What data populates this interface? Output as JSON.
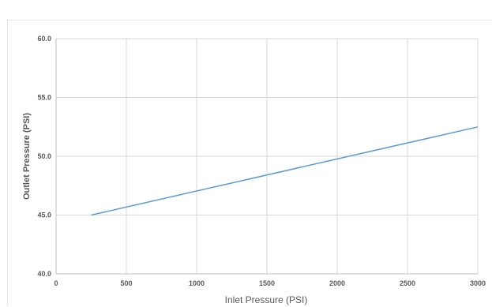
{
  "chart_data": {
    "type": "line",
    "title": "",
    "xlabel": "Inlet Pressure (PSI)",
    "ylabel": "Outlet Pressure (PSI)",
    "xlim": [
      0,
      3000
    ],
    "ylim": [
      40.0,
      60.0
    ],
    "x_ticks": [
      "0",
      "500",
      "1000",
      "1500",
      "2000",
      "2500",
      "3000"
    ],
    "y_ticks": [
      "40.0",
      "45.0",
      "50.0",
      "55.0",
      "60.0"
    ],
    "grid": true,
    "legend": "none",
    "series": [
      {
        "color": "#5b9bd5",
        "x": [
          250,
          3000
        ],
        "y": [
          45.0,
          52.5
        ]
      }
    ]
  }
}
